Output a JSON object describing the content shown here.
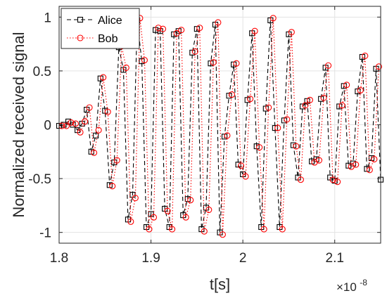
{
  "chart_data": {
    "type": "line",
    "xlabel": "t[s]",
    "ylabel": "Normalized received signal",
    "x_exponent_label": {
      "base": "×10",
      "exponent": "-8"
    },
    "x_unit_scale": 1e-08,
    "xlim": [
      1.8,
      2.15
    ],
    "ylim": [
      -1.1,
      1.1
    ],
    "x_ticks": [
      1.8,
      1.9,
      2.0,
      2.1
    ],
    "x_tick_labels": [
      "1.8",
      "1.9",
      "2",
      "2.1"
    ],
    "y_ticks": [
      1,
      0.5,
      0,
      -0.5,
      -1
    ],
    "y_tick_labels": [
      "1",
      "0.5",
      "0",
      "-0.5",
      "-1"
    ],
    "grid": true,
    "legend_position": "top-left",
    "series": [
      {
        "name": "Alice",
        "color": "#000000",
        "line_style": "dashed",
        "marker": "square",
        "x": [
          1.8,
          1.805,
          1.81,
          1.815,
          1.82,
          1.825,
          1.83,
          1.835,
          1.84,
          1.845,
          1.85,
          1.855,
          1.86,
          1.865,
          1.87,
          1.875,
          1.88,
          1.885,
          1.89,
          1.895,
          1.9,
          1.905,
          1.91,
          1.915,
          1.92,
          1.925,
          1.93,
          1.935,
          1.94,
          1.945,
          1.95,
          1.955,
          1.96,
          1.965,
          1.97,
          1.975,
          1.98,
          1.985,
          1.99,
          1.995,
          2.0,
          2.005,
          2.01,
          2.015,
          2.02,
          2.025,
          2.03,
          2.035,
          2.04,
          2.045,
          2.05,
          2.055,
          2.06,
          2.065,
          2.07,
          2.075,
          2.08,
          2.085,
          2.09,
          2.095,
          2.1,
          2.105,
          2.11,
          2.115,
          2.12,
          2.125,
          2.13,
          2.135,
          2.14,
          2.145,
          2.15
        ],
        "y": [
          -0.01,
          0.0,
          0.03,
          0.0,
          -0.05,
          0.01,
          0.14,
          -0.25,
          -0.1,
          0.43,
          0.13,
          -0.56,
          -0.35,
          0.72,
          0.51,
          -0.88,
          -0.65,
          0.97,
          0.59,
          -0.95,
          -0.83,
          0.88,
          0.87,
          -0.78,
          -0.95,
          0.84,
          0.87,
          -0.84,
          -0.69,
          0.67,
          0.89,
          -0.97,
          -0.77,
          0.57,
          0.93,
          -1.0,
          -0.11,
          0.27,
          0.56,
          -0.37,
          -0.46,
          0.23,
          0.85,
          -0.2,
          -0.95,
          0.15,
          0.97,
          -0.03,
          -0.95,
          0.04,
          0.84,
          -0.19,
          -0.49,
          0.17,
          0.22,
          -0.34,
          -0.32,
          0.24,
          0.53,
          -0.49,
          -0.52,
          0.17,
          0.36,
          -0.38,
          -0.36,
          0.31,
          0.63,
          -0.41,
          -0.31,
          0.52,
          -0.51
        ]
      },
      {
        "name": "Bob",
        "color": "#ff0000",
        "line_style": "dotted",
        "marker": "circle",
        "x": [
          1.803,
          1.808,
          1.813,
          1.818,
          1.823,
          1.828,
          1.833,
          1.838,
          1.843,
          1.848,
          1.853,
          1.858,
          1.863,
          1.868,
          1.873,
          1.878,
          1.883,
          1.888,
          1.893,
          1.898,
          1.903,
          1.908,
          1.913,
          1.918,
          1.923,
          1.928,
          1.933,
          1.938,
          1.943,
          1.948,
          1.953,
          1.958,
          1.963,
          1.968,
          1.973,
          1.978,
          1.983,
          1.988,
          1.993,
          1.998,
          2.003,
          2.008,
          2.013,
          2.018,
          2.023,
          2.028,
          2.033,
          2.038,
          2.043,
          2.048,
          2.053,
          2.058,
          2.063,
          2.068,
          2.073,
          2.078,
          2.083,
          2.088,
          2.093,
          2.098,
          2.103,
          2.108,
          2.113,
          2.118,
          2.123,
          2.128,
          2.133,
          2.138,
          2.143,
          2.148
        ],
        "y": [
          -0.01,
          -0.01,
          0.02,
          0.01,
          -0.07,
          0.03,
          0.16,
          -0.26,
          -0.05,
          0.44,
          0.12,
          -0.57,
          -0.33,
          0.73,
          0.53,
          -0.9,
          -0.68,
          0.99,
          0.6,
          -0.97,
          -0.86,
          0.9,
          0.89,
          -0.8,
          -0.97,
          0.85,
          0.88,
          -0.86,
          -0.7,
          0.68,
          0.9,
          -0.99,
          -0.79,
          0.58,
          0.95,
          -1.02,
          -0.1,
          0.28,
          0.57,
          -0.38,
          -0.48,
          0.24,
          0.87,
          -0.21,
          -0.97,
          0.16,
          0.99,
          -0.03,
          -0.97,
          0.05,
          0.86,
          -0.2,
          -0.51,
          0.18,
          0.23,
          -0.35,
          -0.33,
          0.25,
          0.55,
          -0.51,
          -0.53,
          0.18,
          0.37,
          -0.39,
          -0.37,
          0.32,
          0.64,
          -0.42,
          -0.32,
          0.54
        ]
      }
    ]
  }
}
